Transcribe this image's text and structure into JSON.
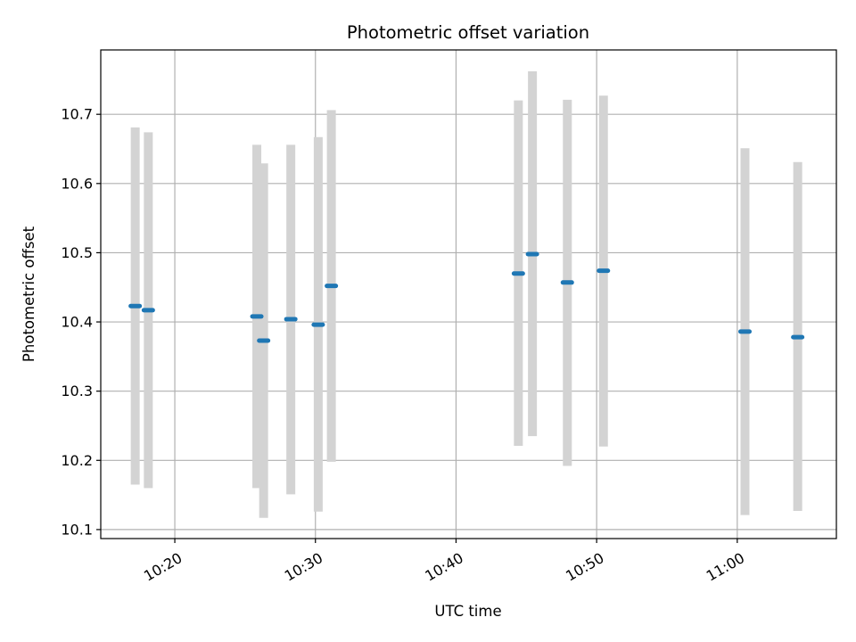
{
  "chart_data": {
    "type": "scatter",
    "title": "Photometric offset variation",
    "xlabel": "UTC time",
    "ylabel": "Photometric offset",
    "grid": true,
    "x_ticks": [
      "10:20",
      "10:30",
      "10:40",
      "10:50",
      "11:00"
    ],
    "y_ticks": [
      "10.1",
      "10.2",
      "10.3",
      "10.4",
      "10.5",
      "10.6",
      "10.7"
    ],
    "xlim": [
      "10:14:44",
      "11:07:03"
    ],
    "ylim": [
      10.087,
      10.793
    ],
    "colors": {
      "marker": "#1f77b4",
      "errorbar": "#d3d3d3",
      "grid": "#b0b0b0"
    },
    "points": [
      {
        "x": "10:17:11",
        "y": 10.423,
        "ylow": 10.165,
        "yhigh": 10.681
      },
      {
        "x": "10:18:07",
        "y": 10.417,
        "ylow": 10.16,
        "yhigh": 10.674
      },
      {
        "x": "10:25:50",
        "y": 10.408,
        "ylow": 10.16,
        "yhigh": 10.656
      },
      {
        "x": "10:26:19",
        "y": 10.373,
        "ylow": 10.117,
        "yhigh": 10.629
      },
      {
        "x": "10:28:15",
        "y": 10.404,
        "ylow": 10.151,
        "yhigh": 10.656
      },
      {
        "x": "10:30:12",
        "y": 10.396,
        "ylow": 10.126,
        "yhigh": 10.667
      },
      {
        "x": "10:31:08",
        "y": 10.452,
        "ylow": 10.198,
        "yhigh": 10.706
      },
      {
        "x": "10:44:26",
        "y": 10.47,
        "ylow": 10.221,
        "yhigh": 10.72
      },
      {
        "x": "10:45:26",
        "y": 10.498,
        "ylow": 10.235,
        "yhigh": 10.762
      },
      {
        "x": "10:47:55",
        "y": 10.457,
        "ylow": 10.192,
        "yhigh": 10.721
      },
      {
        "x": "10:50:29",
        "y": 10.474,
        "ylow": 10.22,
        "yhigh": 10.727
      },
      {
        "x": "11:00:33",
        "y": 10.386,
        "ylow": 10.121,
        "yhigh": 10.651
      },
      {
        "x": "11:04:18",
        "y": 10.378,
        "ylow": 10.127,
        "yhigh": 10.631
      }
    ]
  }
}
